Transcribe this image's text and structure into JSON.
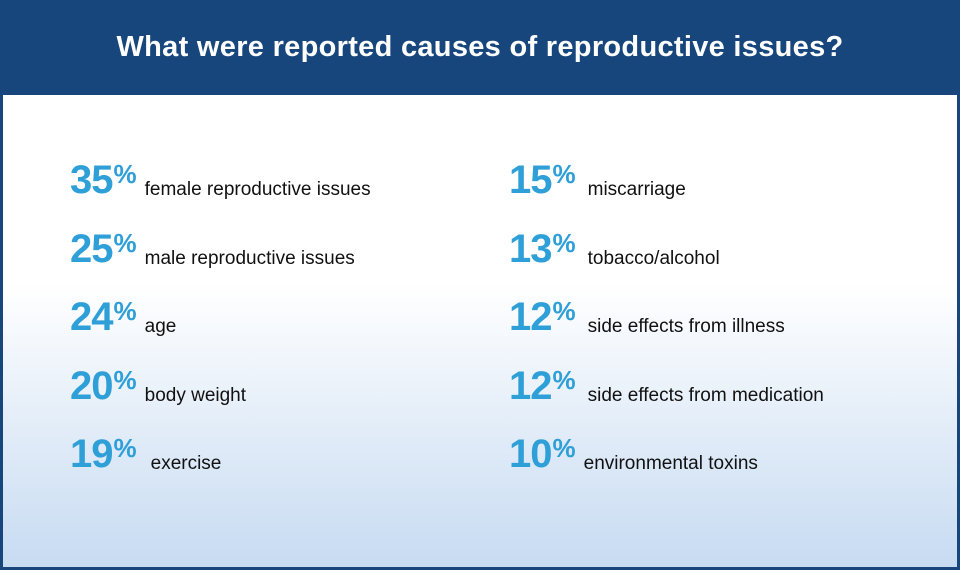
{
  "chart_data": {
    "type": "table",
    "title": "What were reported causes of reproductive issues?",
    "unit": "%",
    "items": [
      {
        "value": 35,
        "label": "female reproductive issues"
      },
      {
        "value": 25,
        "label": "male reproductive issues"
      },
      {
        "value": 24,
        "label": "age"
      },
      {
        "value": 20,
        "label": "body weight"
      },
      {
        "value": 19,
        "label": "exercise"
      },
      {
        "value": 15,
        "label": "miscarriage"
      },
      {
        "value": 13,
        "label": "tobacco/alcohol"
      },
      {
        "value": 12,
        "label": "side effects from illness"
      },
      {
        "value": 12,
        "label": "side effects from medication"
      },
      {
        "value": 10,
        "label": "environmental toxins"
      }
    ]
  },
  "colors": {
    "header_bg": "#17467d",
    "percent": "#2f9fd8",
    "text": "#111111"
  }
}
